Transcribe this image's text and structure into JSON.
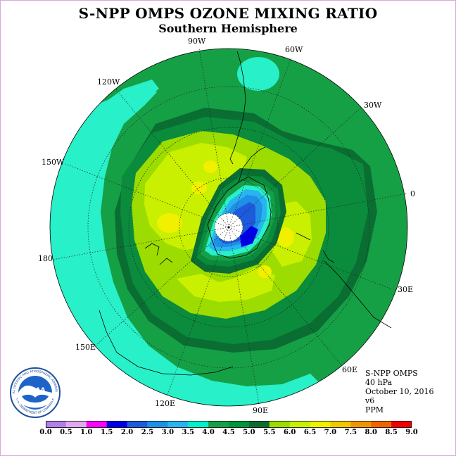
{
  "title": "S-NPP OMPS OZONE MIXING RATIO",
  "subtitle": "Southern Hemisphere",
  "longitude_labels": [
    "90W",
    "60W",
    "30W",
    "0",
    "30E",
    "60E",
    "90E",
    "120E",
    "150E",
    "180",
    "150W",
    "120W"
  ],
  "info": {
    "instrument": "S-NPP OMPS",
    "level": "40 hPa",
    "date": "October 10, 2016",
    "version": "v6",
    "units": "PPM"
  },
  "logo": {
    "text": "NOAA",
    "ring_text": "NATIONAL OCEANIC AND ATMOSPHERIC ADMINISTRATION",
    "ring_text_bottom": "U.S. DEPARTMENT OF COMMERCE"
  },
  "colorbar": {
    "tick_labels": [
      "0.0",
      "0.5",
      "1.0",
      "1.5",
      "2.0",
      "2.5",
      "3.0",
      "3.5",
      "4.0",
      "4.5",
      "5.0",
      "5.5",
      "6.0",
      "6.5",
      "7.0",
      "7.5",
      "8.0",
      "8.5",
      "9.0"
    ],
    "colors": [
      "#b27fe8",
      "#e2a8f0",
      "#ff00ff",
      "#0000e6",
      "#1e5adc",
      "#1e90e6",
      "#28b4f0",
      "#00f0c8",
      "#16a046",
      "#00963c",
      "#0a6e32",
      "#9cdc00",
      "#c8f000",
      "#f0f000",
      "#f0c800",
      "#f09600",
      "#f06400",
      "#f00000",
      "#8c5032"
    ]
  },
  "map_colors": {
    "band_3_5_to_4_0": "#28f0c8",
    "band_4_0_to_4_5": "#16a046",
    "band_4_5_to_5_0": "#0a8c3c",
    "band_5_0_to_5_5": "#0a6e32",
    "band_5_5_to_6_0": "#9cdc00",
    "band_6_0_to_6_5": "#c8f000",
    "band_6_5_to_7_0": "#f0f000",
    "band_3_0_to_3_5": "#28b4f0",
    "band_2_5_to_3_0": "#1e90e6",
    "band_2_0_to_2_5": "#1e5adc",
    "band_1_5_to_2_0": "#0000e6",
    "no_data": "#ffffff"
  }
}
